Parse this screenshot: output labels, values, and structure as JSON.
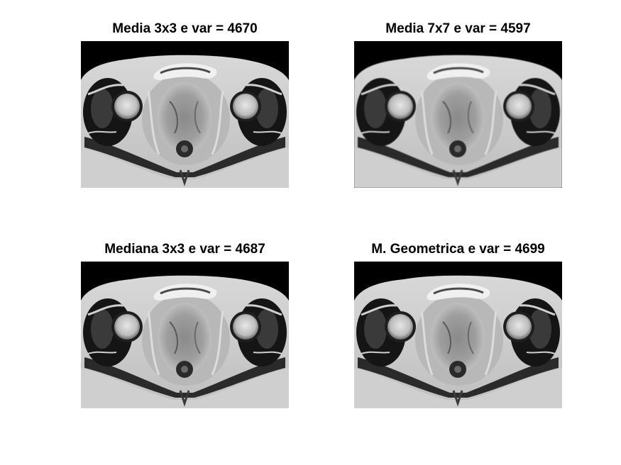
{
  "figure": {
    "subplots": [
      {
        "title": "Media 3x3 e var = 4670"
      },
      {
        "title": "Media 7x7 e var = 4597"
      },
      {
        "title": "Mediana 3x3 e var = 4687"
      },
      {
        "title": "M. Geometrica e var = 4699"
      }
    ]
  }
}
